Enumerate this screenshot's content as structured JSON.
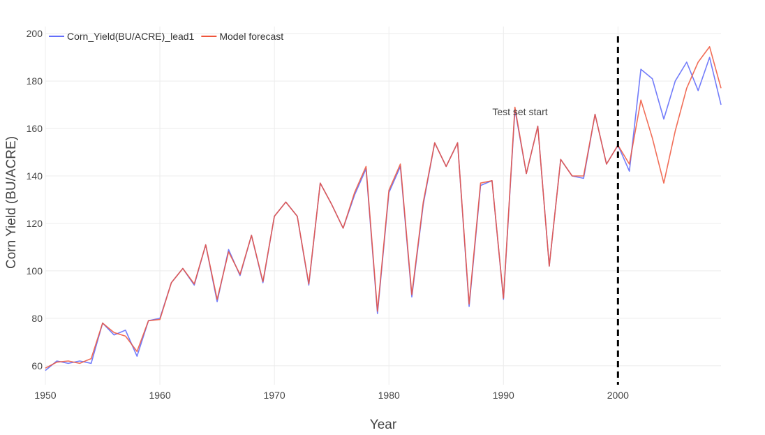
{
  "chart_data": {
    "type": "line",
    "xlabel": "Year",
    "ylabel": "Corn Yield (BU/ACRE)",
    "xlim": [
      1950,
      2009
    ],
    "ylim": [
      52,
      203
    ],
    "x_ticks": [
      1950,
      1960,
      1970,
      1980,
      1990,
      2000
    ],
    "y_ticks": [
      60,
      80,
      100,
      120,
      140,
      160,
      180,
      200
    ],
    "grid": true,
    "legend_position": "top-left",
    "x": [
      1950,
      1951,
      1952,
      1953,
      1954,
      1955,
      1956,
      1957,
      1958,
      1959,
      1960,
      1961,
      1962,
      1963,
      1964,
      1965,
      1966,
      1967,
      1968,
      1969,
      1970,
      1971,
      1972,
      1973,
      1974,
      1975,
      1976,
      1977,
      1978,
      1979,
      1980,
      1981,
      1982,
      1983,
      1984,
      1985,
      1986,
      1987,
      1988,
      1989,
      1990,
      1991,
      1992,
      1993,
      1994,
      1995,
      1996,
      1997,
      1998,
      1999,
      2000,
      2001,
      2002,
      2003,
      2004,
      2005,
      2006,
      2007,
      2008,
      2009
    ],
    "series": [
      {
        "name": "Corn_Yield(BU/ACRE)_lead1",
        "color": "#636efa",
        "values": [
          58,
          62,
          61,
          62,
          61,
          78,
          73,
          75,
          64,
          79,
          80,
          95,
          101,
          94,
          111,
          87,
          109,
          98,
          115,
          95,
          123,
          129,
          123,
          94,
          137,
          128,
          118,
          132,
          143,
          82,
          133,
          144,
          89,
          128,
          154,
          144,
          154,
          85,
          136,
          138,
          88,
          168,
          141,
          161,
          102,
          147,
          140,
          139,
          166,
          145,
          153,
          142,
          185,
          181,
          164,
          180,
          188,
          176,
          190,
          170
        ]
      },
      {
        "name": "Model forecast",
        "color": "#ef553b",
        "values": [
          59,
          61.5,
          62,
          61,
          63,
          78,
          74,
          72.5,
          66,
          79,
          79.5,
          95,
          101,
          94.5,
          111,
          88,
          108,
          98.5,
          115,
          95.5,
          123,
          129,
          123,
          94.5,
          137,
          128,
          118,
          133,
          144,
          83,
          134,
          145,
          90,
          129,
          154,
          144,
          154,
          86,
          137,
          138,
          88.5,
          169,
          141,
          161,
          102,
          147,
          140,
          140,
          166,
          145,
          153,
          145,
          172,
          156,
          137,
          159,
          177,
          188,
          194.5,
          177
        ]
      }
    ],
    "annotations": [
      {
        "text": "Test set start",
        "x": 2000,
        "style": "dashed-vertical-line"
      }
    ]
  }
}
